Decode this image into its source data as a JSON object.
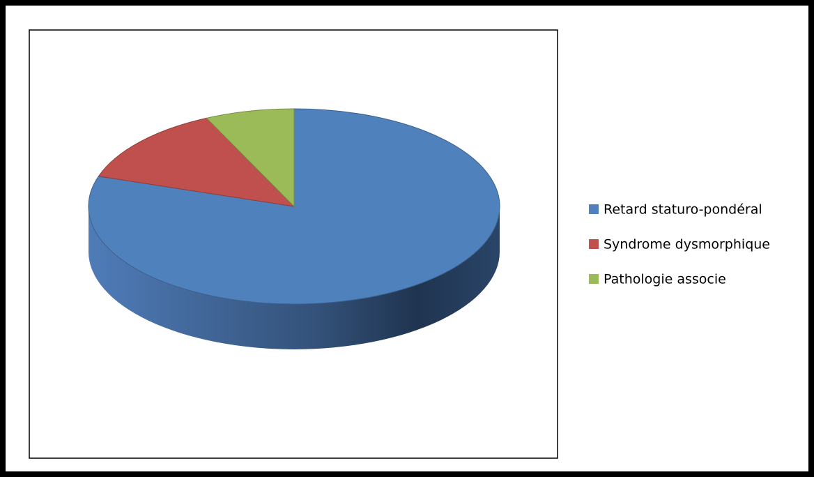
{
  "chart_data": {
    "type": "pie",
    "categories": [
      "Retard staturo-pondéral",
      "Syndrome dysmorphique",
      "Pathologie associe"
    ],
    "values": [
      80,
      13,
      7
    ],
    "colors": [
      "#4f81bd",
      "#c0504d",
      "#9bbb59"
    ],
    "legend": "right"
  }
}
